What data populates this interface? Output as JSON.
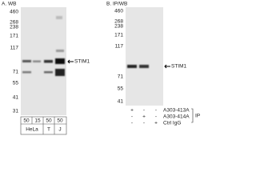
{
  "panel_a": {
    "label": "A. WB",
    "markers": [
      460,
      268,
      238,
      171,
      117,
      71,
      55,
      41,
      31
    ],
    "target": "STIM1",
    "loads": [
      50,
      15,
      50,
      50
    ],
    "cell_lines": [
      "HeLa",
      "T",
      "J"
    ]
  },
  "panel_b": {
    "label": "B. IP/WB",
    "markers": [
      460,
      268,
      238,
      171,
      117,
      71,
      55,
      41
    ],
    "target": "STIM1",
    "rows": [
      {
        "signs": [
          "+",
          "-",
          "-"
        ],
        "label": "A303-413A"
      },
      {
        "signs": [
          "-",
          "+",
          "-"
        ],
        "label": "A303-414A"
      },
      {
        "signs": [
          "-",
          "-",
          "+"
        ],
        "label": "Ctrl IgG"
      }
    ],
    "group_label": "IP"
  }
}
